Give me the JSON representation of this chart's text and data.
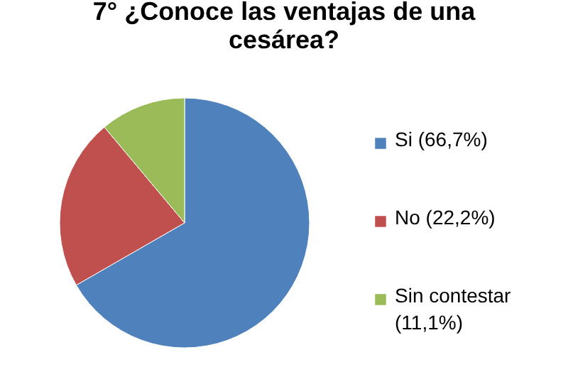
{
  "chart_data": {
    "type": "pie",
    "title": "7° ¿Conoce las ventajas de una cesárea?",
    "categories": [
      "Si (66,7%)",
      "No (22,2%)",
      "Sin contestar (11,1%)"
    ],
    "values": [
      66.7,
      22.2,
      11.1
    ],
    "colors": [
      "#4f81bd",
      "#c0504d",
      "#9bbb59"
    ],
    "legend": "right"
  }
}
